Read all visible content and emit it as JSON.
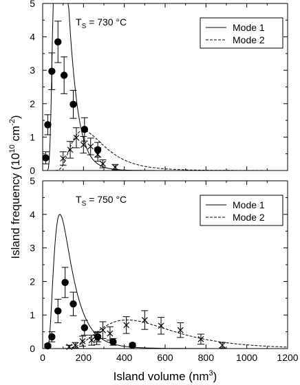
{
  "chart_data": {
    "type": "scatter",
    "xlabel": "Island volume (nm",
    "xlabel_sup": "3",
    "xlabel_end": ")",
    "ylabel": "Island frequency (10",
    "ylabel_sup": "10",
    "ylabel_mid": " cm",
    "ylabel_sup2": "-2",
    "ylabel_end": ")",
    "xlim": [
      0,
      1200
    ],
    "xticks": [
      0,
      200,
      400,
      600,
      800,
      1000,
      1200
    ],
    "xtick_labels": [
      "0",
      "200",
      "400",
      "600",
      "800",
      "1000",
      "1200"
    ],
    "panels": [
      {
        "label": "T",
        "label_sub": "S",
        "label_rest": " = 730 °C",
        "ylim": [
          0,
          5
        ],
        "yticks": [
          0,
          1,
          2,
          3,
          4,
          5
        ],
        "ytick_labels": [
          "0",
          "1",
          "2",
          "3",
          "4",
          "5"
        ],
        "legend": [
          "Mode 1",
          "Mode 2"
        ],
        "mode1_points": [
          {
            "x": 15,
            "y": 0.38,
            "err": 0.18
          },
          {
            "x": 25,
            "y": 1.37,
            "err": 0.3
          },
          {
            "x": 45,
            "y": 2.97,
            "err": 0.55
          },
          {
            "x": 75,
            "y": 3.85,
            "err": 0.62
          },
          {
            "x": 105,
            "y": 2.85,
            "err": 0.55
          },
          {
            "x": 150,
            "y": 1.98,
            "err": 0.42
          },
          {
            "x": 205,
            "y": 1.23,
            "err": 0.35
          },
          {
            "x": 270,
            "y": 0.62,
            "err": 0.22
          }
        ],
        "mode2_points": [
          {
            "x": 100,
            "y": 0.36,
            "err": 0.2
          },
          {
            "x": 135,
            "y": 0.62,
            "err": 0.25
          },
          {
            "x": 165,
            "y": 0.98,
            "err": 0.3
          },
          {
            "x": 200,
            "y": 0.77,
            "err": 0.25
          },
          {
            "x": 235,
            "y": 0.72,
            "err": 0.25
          },
          {
            "x": 270,
            "y": 0.48,
            "err": 0.2
          },
          {
            "x": 295,
            "y": 0.2,
            "err": 0.12
          },
          {
            "x": 355,
            "y": 0.1,
            "err": 0.08
          }
        ],
        "mode1_curve": {
          "x0": 15,
          "scale": 8.5,
          "ln_center": 4.4,
          "ln_sigma": 0.5
        },
        "mode2_curve": {
          "x0": 40,
          "scale": 2.7,
          "ln_center": 5.32,
          "ln_sigma": 0.5
        }
      },
      {
        "label": "T",
        "label_sub": "S",
        "label_rest": " = 750 °C",
        "ylim": [
          0,
          5
        ],
        "yticks": [
          0,
          1,
          2,
          3,
          4,
          5
        ],
        "ytick_labels": [
          "0",
          "1",
          "2",
          "3",
          "4",
          "5"
        ],
        "legend": [
          "Mode 1",
          "Mode 2"
        ],
        "mode1_points": [
          {
            "x": 25,
            "y": 0.08,
            "err": 0.05
          },
          {
            "x": 45,
            "y": 0.35,
            "err": 0.15
          },
          {
            "x": 75,
            "y": 1.12,
            "err": 0.35
          },
          {
            "x": 110,
            "y": 1.97,
            "err": 0.45
          },
          {
            "x": 150,
            "y": 1.33,
            "err": 0.35
          },
          {
            "x": 205,
            "y": 0.62,
            "err": 0.22
          },
          {
            "x": 270,
            "y": 0.35,
            "err": 0.15
          },
          {
            "x": 345,
            "y": 0.2,
            "err": 0.1
          },
          {
            "x": 440,
            "y": 0.1,
            "err": 0.06
          }
        ],
        "mode2_points": [
          {
            "x": 130,
            "y": 0.05,
            "err": 0.05
          },
          {
            "x": 160,
            "y": 0.1,
            "err": 0.08
          },
          {
            "x": 195,
            "y": 0.22,
            "err": 0.15
          },
          {
            "x": 240,
            "y": 0.25,
            "err": 0.15
          },
          {
            "x": 265,
            "y": 0.3,
            "err": 0.18
          },
          {
            "x": 295,
            "y": 0.55,
            "err": 0.25
          },
          {
            "x": 330,
            "y": 0.45,
            "err": 0.2
          },
          {
            "x": 410,
            "y": 0.7,
            "err": 0.25
          },
          {
            "x": 500,
            "y": 0.85,
            "err": 0.28
          },
          {
            "x": 580,
            "y": 0.68,
            "err": 0.25
          },
          {
            "x": 675,
            "y": 0.55,
            "err": 0.22
          },
          {
            "x": 775,
            "y": 0.28,
            "err": 0.15
          },
          {
            "x": 880,
            "y": 0.1,
            "err": 0.08
          }
        ],
        "mode1_curve": {
          "x0": 15,
          "scale": 5.0,
          "ln_center": 4.6,
          "ln_sigma": 0.6
        },
        "mode2_curve": {
          "x0": 20,
          "scale": 4.2,
          "ln_center": 6.18,
          "ln_sigma": 0.45
        }
      }
    ]
  }
}
